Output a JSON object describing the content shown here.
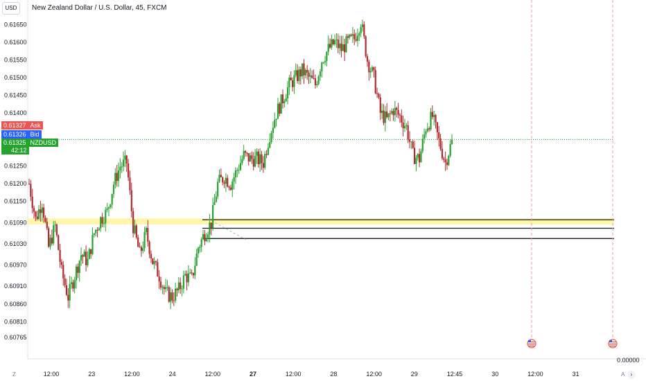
{
  "unit_label": "USD",
  "title": "New Zealand Dollar / U.S. Dollar, 45, FXCM",
  "price_tags": {
    "ask": {
      "value": "0.61327",
      "label": "Ask",
      "color": "#ef5350"
    },
    "bid": {
      "value": "0.61326",
      "label": "Bid",
      "color": "#2962ff"
    },
    "last": {
      "value": "0.61325",
      "label": "NZDUSD",
      "color": "#26a32e"
    },
    "countdown": "42:12"
  },
  "y_ticks": [
    "0.61650",
    "0.61600",
    "0.61550",
    "0.61500",
    "0.61450",
    "0.61400",
    "0.61250",
    "0.61200",
    "0.61150",
    "0.61090",
    "0.61030",
    "0.60970",
    "0.60910",
    "0.60860",
    "0.60810",
    "0.60765"
  ],
  "x_ticks": [
    {
      "label": "12:00",
      "bold": false
    },
    {
      "label": "23",
      "bold": false
    },
    {
      "label": "12:00",
      "bold": false
    },
    {
      "label": "24",
      "bold": false
    },
    {
      "label": "12:00",
      "bold": false
    },
    {
      "label": "27",
      "bold": true
    },
    {
      "label": "12:00",
      "bold": false
    },
    {
      "label": "28",
      "bold": false
    },
    {
      "label": "12:00",
      "bold": false
    },
    {
      "label": "29",
      "bold": false
    },
    {
      "label": "12:45",
      "bold": false
    },
    {
      "label": "30",
      "bold": false
    },
    {
      "label": "12:00",
      "bold": false
    },
    {
      "label": "31",
      "bold": false
    }
  ],
  "volume_axis_label": "0.00000",
  "corner_left": "Z",
  "corner_right": "A",
  "scroll_icon": "chevron-right-icon",
  "colors": {
    "up": "#26a32e",
    "down": "#b2282e",
    "zone": "#fff59d",
    "event_line": "#ef9a9a",
    "last_line": "#26a32e"
  },
  "chart_data": {
    "type": "candlestick",
    "symbol": "NZDUSD",
    "interval": "45",
    "ylim": [
      0.6074,
      0.617
    ],
    "last_price": 0.61325,
    "support_zone": [
      0.61085,
      0.61102
    ],
    "horizontal_levels": [
      0.61098,
      0.61074,
      0.61045
    ],
    "event_markers": 2,
    "price_path": [
      [
        0.612,
        0.6126,
        0.6112
      ],
      [
        0.611,
        0.6116,
        0.61
      ],
      [
        0.6115,
        0.6122,
        0.6108
      ],
      [
        0.6102,
        0.6108,
        0.6093
      ],
      [
        0.6108,
        0.6117,
        0.61
      ],
      [
        0.6095,
        0.6102,
        0.6082
      ],
      [
        0.6088,
        0.6094,
        0.6082
      ],
      [
        0.6094,
        0.6106,
        0.6089
      ],
      [
        0.61,
        0.6104,
        0.6092
      ],
      [
        0.6098,
        0.6108,
        0.6094
      ],
      [
        0.6106,
        0.6115,
        0.61
      ],
      [
        0.611,
        0.6122,
        0.6106
      ],
      [
        0.6112,
        0.6118,
        0.6104
      ],
      [
        0.612,
        0.6128,
        0.6116
      ],
      [
        0.6125,
        0.6131,
        0.612
      ],
      [
        0.6126,
        0.613,
        0.6115
      ],
      [
        0.6108,
        0.6118,
        0.6098
      ],
      [
        0.61,
        0.6114,
        0.6095
      ],
      [
        0.6106,
        0.6112,
        0.61
      ],
      [
        0.6098,
        0.6104,
        0.609
      ],
      [
        0.6094,
        0.6098,
        0.6086
      ],
      [
        0.6089,
        0.6095,
        0.6086
      ],
      [
        0.6088,
        0.6093,
        0.6084
      ],
      [
        0.609,
        0.6097,
        0.6087
      ],
      [
        0.6094,
        0.6098,
        0.6089
      ],
      [
        0.6093,
        0.6098,
        0.6088
      ],
      [
        0.6102,
        0.6107,
        0.6098
      ],
      [
        0.6106,
        0.611,
        0.6101
      ],
      [
        0.6109,
        0.6115,
        0.6104
      ],
      [
        0.612,
        0.6126,
        0.6115
      ],
      [
        0.6122,
        0.6126,
        0.6118
      ],
      [
        0.612,
        0.6124,
        0.6114
      ],
      [
        0.6124,
        0.613,
        0.6118
      ],
      [
        0.6128,
        0.6132,
        0.6124
      ],
      [
        0.6127,
        0.6132,
        0.6122
      ],
      [
        0.6127,
        0.613,
        0.6123
      ],
      [
        0.6126,
        0.6133,
        0.6122
      ],
      [
        0.6134,
        0.614,
        0.613
      ],
      [
        0.614,
        0.6146,
        0.6135
      ],
      [
        0.6144,
        0.615,
        0.6138
      ],
      [
        0.6148,
        0.6152,
        0.614
      ],
      [
        0.615,
        0.6154,
        0.6142
      ],
      [
        0.6152,
        0.6156,
        0.6144
      ],
      [
        0.615,
        0.6153,
        0.614
      ],
      [
        0.6148,
        0.6154,
        0.6142
      ],
      [
        0.6155,
        0.616,
        0.615
      ],
      [
        0.6158,
        0.6164,
        0.6154
      ],
      [
        0.616,
        0.6167,
        0.6155
      ],
      [
        0.6158,
        0.6163,
        0.6152
      ],
      [
        0.616,
        0.6164,
        0.6155
      ],
      [
        0.6161,
        0.6165,
        0.6157
      ],
      [
        0.6166,
        0.617,
        0.616
      ],
      [
        0.6155,
        0.6167,
        0.6148
      ],
      [
        0.615,
        0.6155,
        0.6143
      ],
      [
        0.614,
        0.6148,
        0.6135
      ],
      [
        0.6138,
        0.6143,
        0.6133
      ],
      [
        0.6141,
        0.6145,
        0.6134
      ],
      [
        0.6139,
        0.6144,
        0.613
      ],
      [
        0.6136,
        0.6141,
        0.6128
      ],
      [
        0.6128,
        0.6134,
        0.6123
      ],
      [
        0.6127,
        0.6132,
        0.6124
      ],
      [
        0.6136,
        0.6144,
        0.6132
      ],
      [
        0.6139,
        0.6144,
        0.6134
      ],
      [
        0.6132,
        0.6137,
        0.6122
      ],
      [
        0.6126,
        0.6132,
        0.6122
      ],
      [
        0.6132,
        0.6134,
        0.6128
      ]
    ]
  }
}
